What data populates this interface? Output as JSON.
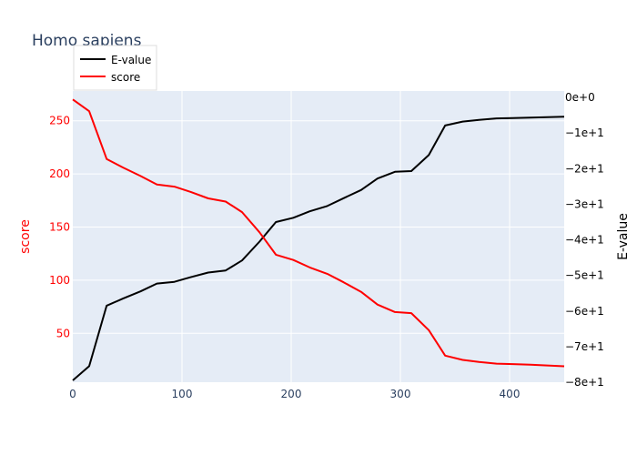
{
  "chart_data": {
    "type": "line",
    "title": "Homo sapiens",
    "xlabel": "",
    "x_ticks": [
      "0",
      "100",
      "200",
      "300",
      "400"
    ],
    "xlim": [
      0,
      450
    ],
    "grid": true,
    "legend_position": "top-left",
    "background_color": "#e5ecf6",
    "axes": {
      "left": {
        "label": "score",
        "color": "#ff0000",
        "ylim": [
          4,
          278
        ],
        "ticks": [
          "50",
          "100",
          "150",
          "200",
          "250"
        ]
      },
      "right": {
        "label": "E-value",
        "color": "#000000",
        "ylim": [
          -80,
          1.8
        ],
        "ticks": [
          "0e+0",
          "−1e+1",
          "−2e+1",
          "−3e+1",
          "−4e+1",
          "−5e+1",
          "−6e+1",
          "−7e+1",
          "−8e+1"
        ]
      }
    },
    "series": [
      {
        "name": "E-value",
        "axis": "right",
        "color": "#000000",
        "x": [
          0,
          15,
          31,
          46,
          62,
          77,
          93,
          108,
          124,
          140,
          155,
          171,
          186,
          202,
          217,
          233,
          248,
          264,
          279,
          295,
          310,
          326,
          341,
          357,
          372,
          388,
          403,
          419,
          450
        ],
        "y": [
          -79.5,
          -75.5,
          -58.5,
          -56.5,
          -54.5,
          -52.3,
          -51.8,
          -50.5,
          -49.2,
          -48.6,
          -45.8,
          -40.5,
          -35.0,
          -33.8,
          -32.0,
          -30.5,
          -28.3,
          -26.0,
          -22.8,
          -20.9,
          -20.7,
          -16.2,
          -7.9,
          -6.8,
          -6.3,
          -5.9,
          -5.8,
          -5.7,
          -5.4
        ]
      },
      {
        "name": "score",
        "axis": "left",
        "color": "#ff0000",
        "x": [
          0,
          15,
          31,
          46,
          62,
          77,
          93,
          108,
          124,
          140,
          155,
          171,
          186,
          202,
          217,
          233,
          248,
          264,
          279,
          295,
          310,
          326,
          341,
          357,
          372,
          388,
          403,
          419,
          450
        ],
        "y": [
          270,
          259,
          214,
          206,
          198,
          190,
          188,
          183,
          177,
          174,
          164,
          145,
          124,
          119,
          112,
          106,
          98,
          89,
          77,
          70,
          69,
          53,
          29,
          25,
          23,
          21.5,
          21,
          20.5,
          19
        ]
      }
    ]
  }
}
